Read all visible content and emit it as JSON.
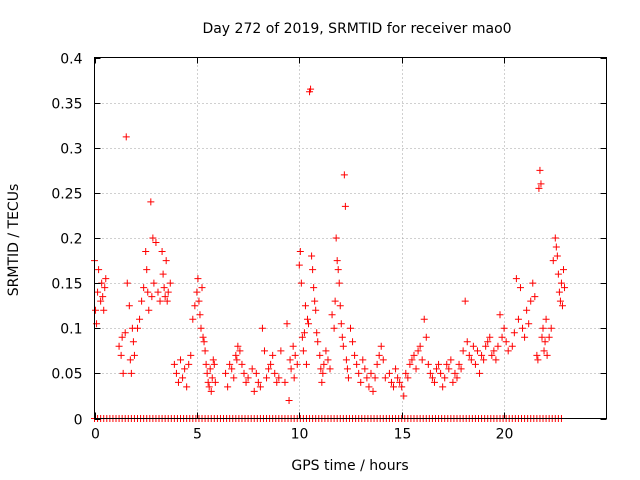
{
  "chart_data": {
    "type": "scatter",
    "title": "Day 272 of 2019, SRMTID for receiver mao0",
    "xlabel": "GPS time / hours",
    "ylabel": "SRMTID / TECUs",
    "xlim": [
      0,
      25
    ],
    "ylim": [
      0,
      0.4
    ],
    "grid": true,
    "xticks": [
      0,
      5,
      10,
      15,
      20
    ],
    "yticks": [
      0,
      0.05,
      0.1,
      0.15,
      0.2,
      0.25,
      0.3,
      0.35,
      0.4
    ],
    "xtick_labels": [
      "0",
      "5",
      "10",
      "15",
      "20"
    ],
    "ytick_labels": [
      "0",
      "0.05",
      "0.1",
      "0.15",
      "0.2",
      "0.25",
      "0.3",
      "0.35",
      "0.4"
    ],
    "marker": "+",
    "color": "#ff0000",
    "series": [
      {
        "name": "SRMTID",
        "points": [
          [
            0.0,
            0.175
          ],
          [
            0.05,
            0.12
          ],
          [
            0.1,
            0.105
          ],
          [
            0.15,
            0.14
          ],
          [
            0.2,
            0.165
          ],
          [
            0.3,
            0.13
          ],
          [
            0.35,
            0.15
          ],
          [
            0.4,
            0.135
          ],
          [
            0.45,
            0.12
          ],
          [
            0.5,
            0.145
          ],
          [
            0.55,
            0.155
          ],
          [
            1.2,
            0.08
          ],
          [
            1.3,
            0.07
          ],
          [
            1.35,
            0.09
          ],
          [
            1.4,
            0.05
          ],
          [
            1.5,
            0.095
          ],
          [
            1.55,
            0.312
          ],
          [
            1.6,
            0.15
          ],
          [
            1.7,
            0.125
          ],
          [
            1.75,
            0.065
          ],
          [
            1.8,
            0.05
          ],
          [
            1.85,
            0.1
          ],
          [
            1.9,
            0.085
          ],
          [
            1.95,
            0.07
          ],
          [
            2.1,
            0.1
          ],
          [
            2.2,
            0.11
          ],
          [
            2.3,
            0.13
          ],
          [
            2.4,
            0.145
          ],
          [
            2.5,
            0.185
          ],
          [
            2.55,
            0.165
          ],
          [
            2.6,
            0.14
          ],
          [
            2.65,
            0.12
          ],
          [
            2.75,
            0.24
          ],
          [
            2.8,
            0.135
          ],
          [
            2.85,
            0.2
          ],
          [
            2.9,
            0.15
          ],
          [
            3.0,
            0.195
          ],
          [
            3.1,
            0.14
          ],
          [
            3.2,
            0.13
          ],
          [
            3.3,
            0.185
          ],
          [
            3.35,
            0.16
          ],
          [
            3.4,
            0.145
          ],
          [
            3.45,
            0.135
          ],
          [
            3.5,
            0.175
          ],
          [
            3.55,
            0.13
          ],
          [
            3.6,
            0.14
          ],
          [
            3.7,
            0.15
          ],
          [
            3.9,
            0.06
          ],
          [
            4.0,
            0.05
          ],
          [
            4.1,
            0.04
          ],
          [
            4.2,
            0.065
          ],
          [
            4.3,
            0.045
          ],
          [
            4.4,
            0.055
          ],
          [
            4.5,
            0.035
          ],
          [
            4.6,
            0.06
          ],
          [
            4.7,
            0.07
          ],
          [
            4.8,
            0.11
          ],
          [
            4.9,
            0.125
          ],
          [
            5.0,
            0.14
          ],
          [
            5.05,
            0.155
          ],
          [
            5.1,
            0.13
          ],
          [
            5.15,
            0.115
          ],
          [
            5.2,
            0.1
          ],
          [
            5.25,
            0.145
          ],
          [
            5.3,
            0.09
          ],
          [
            5.35,
            0.085
          ],
          [
            5.4,
            0.075
          ],
          [
            5.45,
            0.06
          ],
          [
            5.5,
            0.05
          ],
          [
            5.55,
            0.04
          ],
          [
            5.6,
            0.035
          ],
          [
            5.65,
            0.055
          ],
          [
            5.7,
            0.03
          ],
          [
            5.75,
            0.045
          ],
          [
            5.8,
            0.065
          ],
          [
            5.85,
            0.06
          ],
          [
            5.9,
            0.04
          ],
          [
            6.4,
            0.05
          ],
          [
            6.5,
            0.035
          ],
          [
            6.6,
            0.06
          ],
          [
            6.7,
            0.055
          ],
          [
            6.8,
            0.045
          ],
          [
            6.9,
            0.07
          ],
          [
            6.95,
            0.065
          ],
          [
            7.0,
            0.08
          ],
          [
            7.1,
            0.075
          ],
          [
            7.2,
            0.06
          ],
          [
            7.3,
            0.05
          ],
          [
            7.4,
            0.04
          ],
          [
            7.5,
            0.045
          ],
          [
            7.7,
            0.055
          ],
          [
            7.8,
            0.03
          ],
          [
            7.9,
            0.05
          ],
          [
            8.0,
            0.04
          ],
          [
            8.1,
            0.035
          ],
          [
            8.2,
            0.1
          ],
          [
            8.3,
            0.075
          ],
          [
            8.4,
            0.045
          ],
          [
            8.5,
            0.055
          ],
          [
            8.6,
            0.06
          ],
          [
            8.7,
            0.07
          ],
          [
            8.8,
            0.05
          ],
          [
            8.9,
            0.04
          ],
          [
            9.0,
            0.045
          ],
          [
            9.1,
            0.075
          ],
          [
            9.3,
            0.04
          ],
          [
            9.4,
            0.105
          ],
          [
            9.5,
            0.02
          ],
          [
            9.55,
            0.065
          ],
          [
            9.6,
            0.055
          ],
          [
            9.7,
            0.08
          ],
          [
            9.75,
            0.045
          ],
          [
            9.8,
            0.07
          ],
          [
            9.9,
            0.06
          ],
          [
            10.0,
            0.17
          ],
          [
            10.05,
            0.185
          ],
          [
            10.1,
            0.15
          ],
          [
            10.15,
            0.09
          ],
          [
            10.2,
            0.075
          ],
          [
            10.25,
            0.095
          ],
          [
            10.3,
            0.125
          ],
          [
            10.35,
            0.06
          ],
          [
            10.4,
            0.11
          ],
          [
            10.45,
            0.105
          ],
          [
            10.5,
            0.362
          ],
          [
            10.55,
            0.365
          ],
          [
            10.6,
            0.18
          ],
          [
            10.65,
            0.165
          ],
          [
            10.7,
            0.145
          ],
          [
            10.75,
            0.13
          ],
          [
            10.8,
            0.12
          ],
          [
            10.85,
            0.095
          ],
          [
            10.9,
            0.085
          ],
          [
            11.0,
            0.07
          ],
          [
            11.05,
            0.055
          ],
          [
            11.1,
            0.04
          ],
          [
            11.15,
            0.05
          ],
          [
            11.2,
            0.06
          ],
          [
            11.3,
            0.075
          ],
          [
            11.4,
            0.065
          ],
          [
            11.5,
            0.055
          ],
          [
            11.6,
            0.115
          ],
          [
            11.7,
            0.1
          ],
          [
            11.75,
            0.13
          ],
          [
            11.8,
            0.2
          ],
          [
            11.85,
            0.175
          ],
          [
            11.9,
            0.165
          ],
          [
            11.95,
            0.15
          ],
          [
            12.0,
            0.125
          ],
          [
            12.05,
            0.105
          ],
          [
            12.1,
            0.09
          ],
          [
            12.15,
            0.08
          ],
          [
            12.2,
            0.27
          ],
          [
            12.25,
            0.235
          ],
          [
            12.3,
            0.065
          ],
          [
            12.35,
            0.055
          ],
          [
            12.4,
            0.045
          ],
          [
            12.5,
            0.1
          ],
          [
            12.6,
            0.085
          ],
          [
            12.7,
            0.07
          ],
          [
            12.8,
            0.06
          ],
          [
            12.9,
            0.05
          ],
          [
            13.0,
            0.04
          ],
          [
            13.1,
            0.065
          ],
          [
            13.2,
            0.055
          ],
          [
            13.3,
            0.045
          ],
          [
            13.4,
            0.035
          ],
          [
            13.5,
            0.05
          ],
          [
            13.6,
            0.03
          ],
          [
            13.7,
            0.045
          ],
          [
            13.8,
            0.06
          ],
          [
            13.9,
            0.07
          ],
          [
            14.0,
            0.08
          ],
          [
            14.1,
            0.065
          ],
          [
            14.2,
            0.045
          ],
          [
            14.4,
            0.05
          ],
          [
            14.5,
            0.04
          ],
          [
            14.6,
            0.035
          ],
          [
            14.7,
            0.055
          ],
          [
            14.8,
            0.045
          ],
          [
            14.9,
            0.04
          ],
          [
            15.0,
            0.035
          ],
          [
            15.1,
            0.025
          ],
          [
            15.2,
            0.05
          ],
          [
            15.3,
            0.045
          ],
          [
            15.4,
            0.06
          ],
          [
            15.5,
            0.065
          ],
          [
            15.6,
            0.07
          ],
          [
            15.7,
            0.055
          ],
          [
            15.8,
            0.075
          ],
          [
            15.9,
            0.08
          ],
          [
            16.0,
            0.065
          ],
          [
            16.1,
            0.11
          ],
          [
            16.2,
            0.09
          ],
          [
            16.3,
            0.06
          ],
          [
            16.4,
            0.05
          ],
          [
            16.5,
            0.045
          ],
          [
            16.6,
            0.04
          ],
          [
            16.7,
            0.055
          ],
          [
            16.8,
            0.06
          ],
          [
            16.9,
            0.05
          ],
          [
            17.0,
            0.035
          ],
          [
            17.1,
            0.045
          ],
          [
            17.2,
            0.06
          ],
          [
            17.3,
            0.055
          ],
          [
            17.4,
            0.065
          ],
          [
            17.5,
            0.04
          ],
          [
            17.6,
            0.05
          ],
          [
            17.7,
            0.045
          ],
          [
            17.8,
            0.06
          ],
          [
            17.9,
            0.055
          ],
          [
            18.0,
            0.075
          ],
          [
            18.1,
            0.13
          ],
          [
            18.2,
            0.085
          ],
          [
            18.3,
            0.07
          ],
          [
            18.4,
            0.065
          ],
          [
            18.5,
            0.08
          ],
          [
            18.6,
            0.06
          ],
          [
            18.7,
            0.075
          ],
          [
            18.8,
            0.05
          ],
          [
            18.9,
            0.07
          ],
          [
            19.0,
            0.065
          ],
          [
            19.1,
            0.08
          ],
          [
            19.2,
            0.085
          ],
          [
            19.3,
            0.09
          ],
          [
            19.4,
            0.07
          ],
          [
            19.5,
            0.075
          ],
          [
            19.6,
            0.065
          ],
          [
            19.7,
            0.08
          ],
          [
            19.8,
            0.115
          ],
          [
            19.9,
            0.09
          ],
          [
            20.0,
            0.1
          ],
          [
            20.1,
            0.085
          ],
          [
            20.2,
            0.075
          ],
          [
            20.4,
            0.08
          ],
          [
            20.5,
            0.095
          ],
          [
            20.6,
            0.155
          ],
          [
            20.7,
            0.11
          ],
          [
            20.8,
            0.145
          ],
          [
            20.9,
            0.1
          ],
          [
            21.0,
            0.09
          ],
          [
            21.1,
            0.12
          ],
          [
            21.2,
            0.105
          ],
          [
            21.3,
            0.13
          ],
          [
            21.4,
            0.15
          ],
          [
            21.5,
            0.135
          ],
          [
            21.6,
            0.07
          ],
          [
            21.65,
            0.065
          ],
          [
            21.7,
            0.255
          ],
          [
            21.75,
            0.275
          ],
          [
            21.8,
            0.26
          ],
          [
            21.85,
            0.09
          ],
          [
            21.9,
            0.1
          ],
          [
            21.95,
            0.075
          ],
          [
            22.0,
            0.085
          ],
          [
            22.05,
            0.11
          ],
          [
            22.1,
            0.07
          ],
          [
            22.2,
            0.09
          ],
          [
            22.3,
            0.1
          ],
          [
            22.4,
            0.175
          ],
          [
            22.5,
            0.2
          ],
          [
            22.55,
            0.19
          ],
          [
            22.6,
            0.18
          ],
          [
            22.65,
            0.16
          ],
          [
            22.7,
            0.14
          ],
          [
            22.75,
            0.13
          ],
          [
            22.8,
            0.15
          ],
          [
            22.85,
            0.125
          ],
          [
            22.9,
            0.165
          ],
          [
            22.95,
            0.145
          ]
        ]
      },
      {
        "name": "zero-level",
        "x_start": 0.0,
        "x_end": 22.9,
        "x_step": 0.15,
        "y": 0.0
      }
    ]
  }
}
